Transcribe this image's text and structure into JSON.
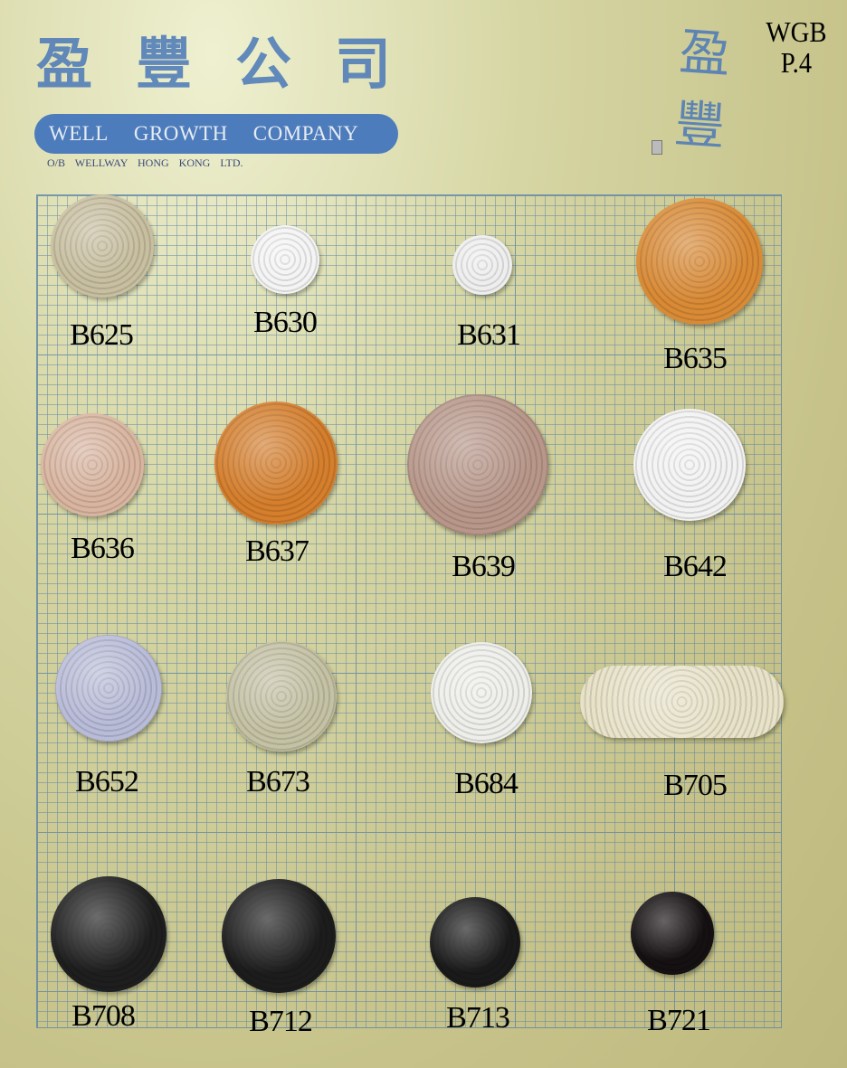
{
  "header": {
    "chinese_name": "盈豐公司",
    "english_name_words": [
      "WELL",
      "GROWTH",
      "COMPANY"
    ],
    "subtitle": "O/B WELLWAY HONG KONG LTD.",
    "calligraphy": "盈豐",
    "catalog_code": "WGB",
    "page": "P.4"
  },
  "buttons": [
    {
      "code": "B625",
      "color": "#c8bfa0"
    },
    {
      "code": "B630",
      "color": "#f4f4f4"
    },
    {
      "code": "B631",
      "color": "#eeeeee"
    },
    {
      "code": "B635",
      "color": "#d98a35"
    },
    {
      "code": "B636",
      "color": "#d9b5a0"
    },
    {
      "code": "B637",
      "color": "#d57e2c"
    },
    {
      "code": "B639",
      "color": "#b8978a"
    },
    {
      "code": "B642",
      "color": "#f2f2f2"
    },
    {
      "code": "B652",
      "color": "#b9bcd8"
    },
    {
      "code": "B673",
      "color": "#c4c1a4"
    },
    {
      "code": "B684",
      "color": "#eeeeea"
    },
    {
      "code": "B705",
      "color": "#e8e2c8"
    },
    {
      "code": "B708",
      "color": "#1e1e1e"
    },
    {
      "code": "B712",
      "color": "#1c1c1c"
    },
    {
      "code": "B713",
      "color": "#1a1a1a"
    },
    {
      "code": "B721",
      "color": "#151012"
    }
  ]
}
